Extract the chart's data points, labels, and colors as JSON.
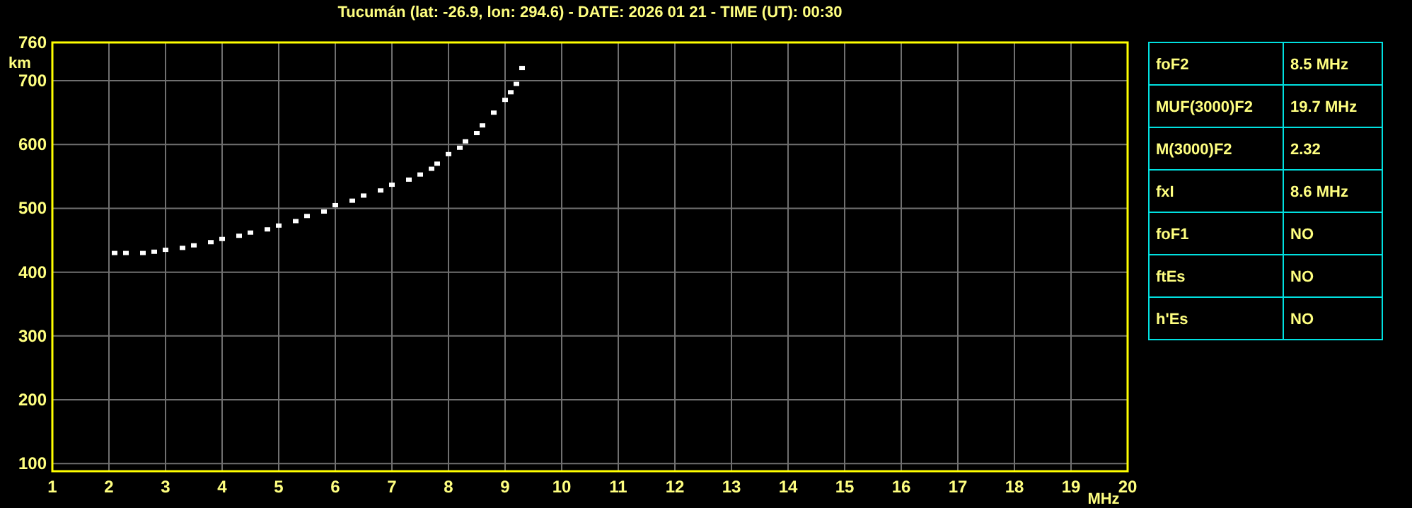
{
  "chart_data": [
    {
      "type": "scatter",
      "title": "Tucumán (lat: -26.9, lon: 294.6) - DATE: 2026 01 21 - TIME (UT): 00:30",
      "xlabel": "MHz",
      "ylabel": "km",
      "xlim": [
        1,
        20
      ],
      "ylim": [
        88,
        760
      ],
      "xticks": [
        1,
        2,
        3,
        4,
        5,
        6,
        7,
        8,
        9,
        10,
        11,
        12,
        13,
        14,
        15,
        16,
        17,
        18,
        19,
        20
      ],
      "yticks": [
        100,
        200,
        300,
        400,
        500,
        600,
        700,
        760
      ],
      "grid": true,
      "marker": "square",
      "series": [
        {
          "color": "#ffffff",
          "x": [
            2.1,
            2.3,
            2.6,
            2.8,
            3.0,
            3.3,
            3.5,
            3.8,
            4.0,
            4.3,
            4.5,
            4.8,
            5.0,
            5.3,
            5.5,
            5.8,
            6.0,
            6.3,
            6.5,
            6.8,
            7.0,
            7.3,
            7.5,
            7.7,
            7.8,
            8.0,
            8.2,
            8.3,
            8.5,
            8.6,
            8.8,
            9.0,
            9.1,
            9.2,
            9.3
          ],
          "values": [
            430,
            430,
            430,
            432,
            435,
            438,
            442,
            447,
            452,
            457,
            462,
            467,
            473,
            480,
            488,
            495,
            505,
            512,
            520,
            528,
            537,
            545,
            553,
            562,
            570,
            585,
            595,
            605,
            618,
            630,
            650,
            670,
            682,
            695,
            720
          ]
        }
      ]
    },
    {
      "type": "other",
      "categories": [
        "foF2",
        "MUF(3000)F2",
        "M(3000)F2",
        "fxI",
        "foF1",
        "ftEs",
        "h'Es"
      ],
      "value_labels": [
        "8.5 MHz",
        "19.7 MHz",
        "2.32",
        "8.6 MHz",
        "NO",
        "NO",
        "NO"
      ]
    }
  ]
}
